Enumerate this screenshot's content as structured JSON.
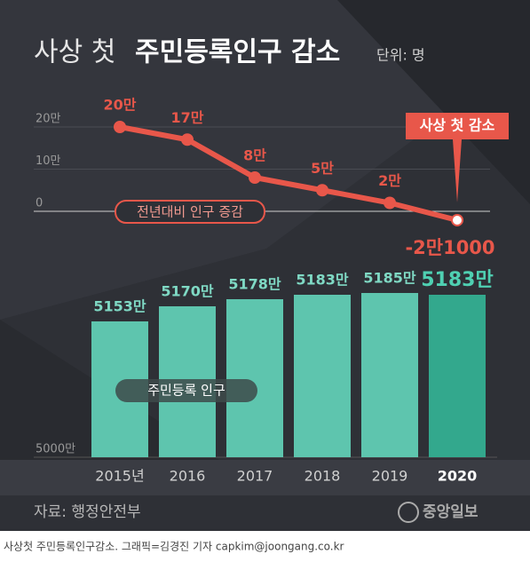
{
  "title_light": "사상 첫",
  "title_bold": "주민등록인구 감소",
  "unit": "단위: 명",
  "chart_data": [
    {
      "type": "line",
      "series": [
        {
          "name": "전년대비 인구 증감",
          "color": "#e8574a",
          "values": [
            200000,
            170000,
            80000,
            50000,
            20000,
            -21000
          ],
          "value_labels": [
            "20만",
            "17만",
            "8만",
            "5만",
            "2만",
            "-2만1000"
          ]
        }
      ],
      "ylim": [
        -50000,
        250000
      ],
      "yticks": [
        {
          "value": 0,
          "label": "0"
        },
        {
          "value": 100000,
          "label": "10만"
        },
        {
          "value": 200000,
          "label": "20만"
        }
      ],
      "grid": true,
      "annotation": "사상 첫 감소"
    },
    {
      "type": "bar",
      "categories": [
        "2015년",
        "2016",
        "2017",
        "2018",
        "2019",
        "2020"
      ],
      "series": [
        {
          "name": "주민등록 인구",
          "colors": [
            "#5ec5ae",
            "#5ec5ae",
            "#5ec5ae",
            "#5ec5ae",
            "#5ec5ae",
            "#33a88d"
          ],
          "values": [
            51530000,
            51700000,
            51780000,
            51830000,
            51850000,
            51830000
          ],
          "value_labels": [
            "5153만",
            "5170만",
            "5178만",
            "5183만",
            "5185만",
            "5183만"
          ]
        }
      ],
      "ylim": [
        50000000,
        52400000
      ],
      "yticks": [
        {
          "value": 50000000,
          "label": "5000만"
        }
      ]
    }
  ],
  "source": "자료: 행정안전부",
  "logo": "중앙일보",
  "caption": "사상첫 주민등록인구감소. 그래픽=김경진 기자 capkim@joongang.co.kr"
}
